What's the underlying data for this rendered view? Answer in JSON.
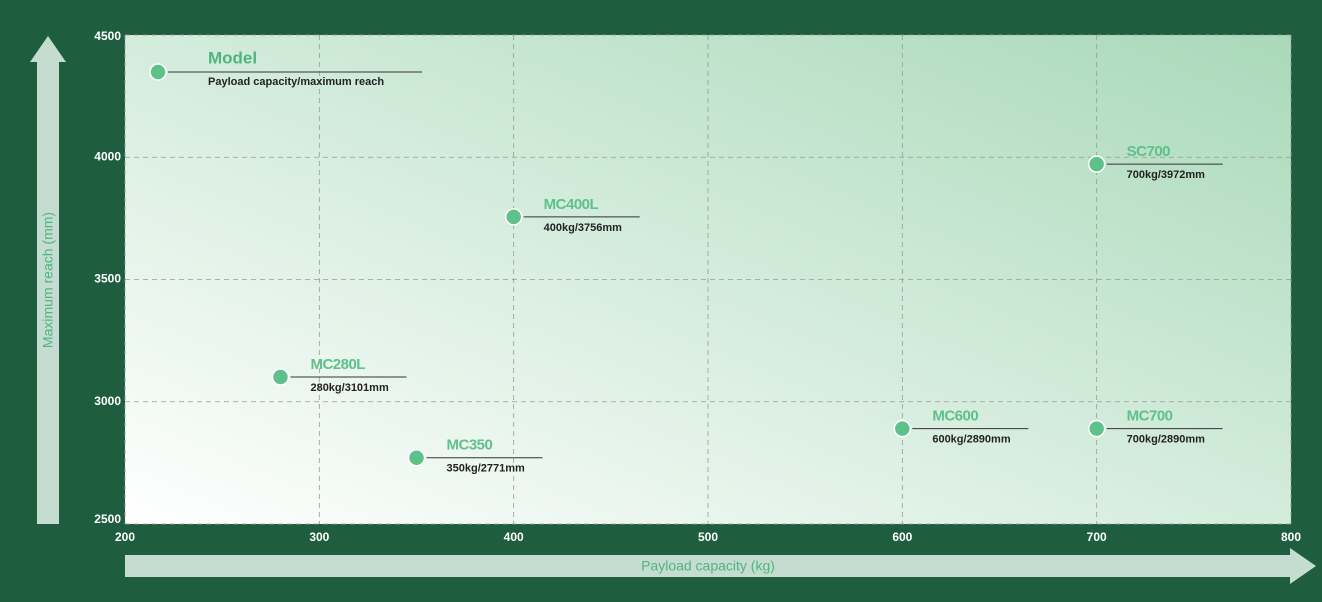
{
  "chart_data": {
    "type": "scatter",
    "xlabel": "Payload capacity (kg)",
    "ylabel": "Maximum reach (mm)",
    "legend": {
      "title": "Model",
      "subtitle": "Payload capacity/maximum reach"
    },
    "point_names": [
      "MC280L",
      "MC350",
      "MC400L",
      "MC600",
      "MC700",
      "SC700"
    ],
    "x": [
      280,
      350,
      400,
      600,
      700,
      700
    ],
    "values": [
      3101,
      2771,
      3756,
      2890,
      2890,
      3972
    ],
    "value_labels": [
      "280kg/3101mm",
      "350kg/2771mm",
      "400kg/3756mm",
      "600kg/2890mm",
      "700kg/2890mm",
      "700kg/3972mm"
    ],
    "color": "#5ec18a",
    "xlim": [
      200,
      800
    ],
    "xticks": [
      200,
      300,
      400,
      500,
      600,
      700,
      800
    ],
    "ylim": [
      2500,
      4500
    ],
    "yticks": [
      2500,
      3000,
      3500,
      4000,
      4500
    ],
    "grid": true
  }
}
